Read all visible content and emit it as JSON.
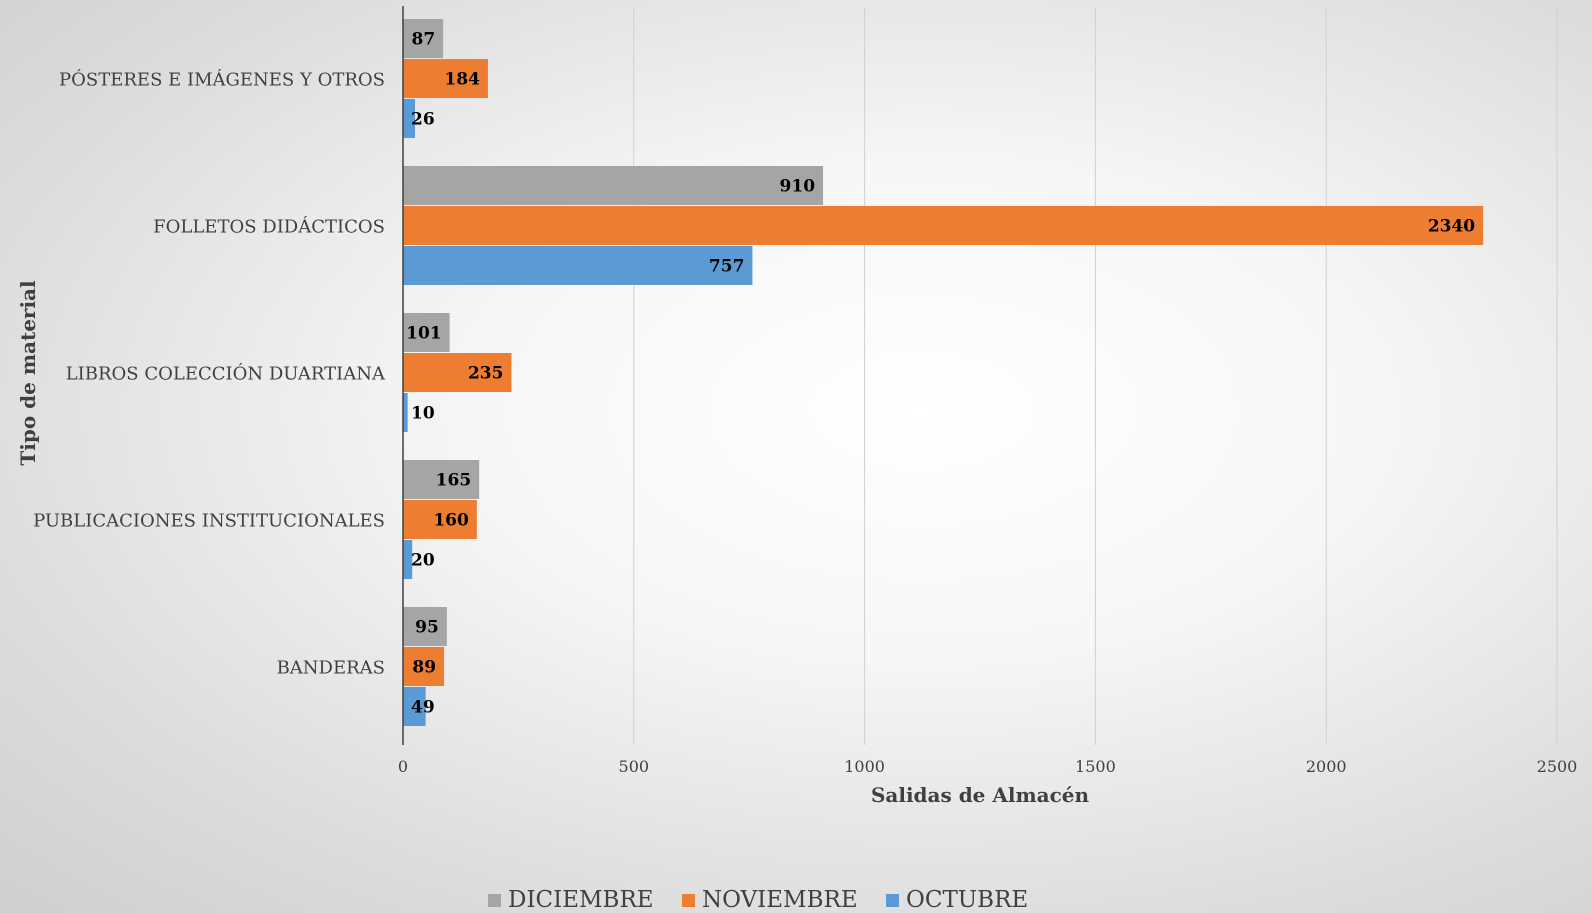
{
  "chart_data": {
    "type": "bar",
    "orientation": "horizontal",
    "categories": [
      "PÓSTERES E IMÁGENES Y OTROS",
      "FOLLETOS DIDÁCTICOS",
      "LIBROS COLECCIÓN DUARTIANA",
      "PUBLICACIONES INSTITUCIONALES",
      "BANDERAS"
    ],
    "series": [
      {
        "name": "DICIEMBRE",
        "color": "#a5a5a5",
        "values": [
          87,
          910,
          101,
          165,
          95
        ]
      },
      {
        "name": "NOVIEMBRE",
        "color": "#ed7d31",
        "values": [
          184,
          2340,
          235,
          160,
          89
        ]
      },
      {
        "name": "OCTUBRE",
        "color": "#5b9bd5",
        "values": [
          26,
          757,
          10,
          20,
          49
        ]
      }
    ],
    "xlabel": "Salidas de Almacén",
    "ylabel": "Tipo de material",
    "xlim": [
      0,
      2500
    ],
    "xticks": [
      "0",
      "500",
      "1000",
      "1500",
      "2000",
      "2500"
    ],
    "grid": "vertical",
    "legend_position": "bottom"
  }
}
